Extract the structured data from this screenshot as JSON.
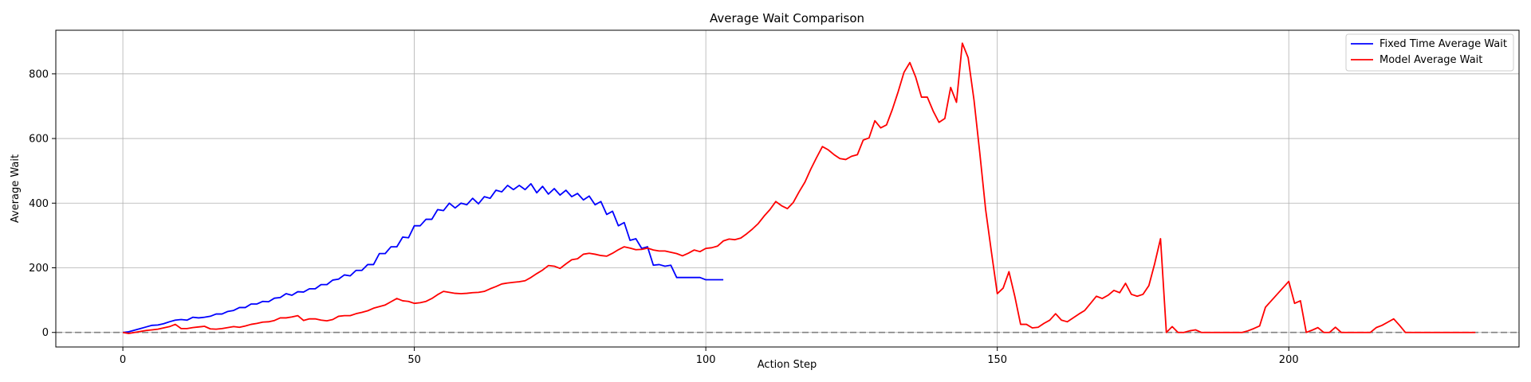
{
  "chart_data": {
    "type": "line",
    "title": "Average Wait Comparison",
    "xlabel": "Action Step",
    "ylabel": "Average Wait",
    "xlim": [
      -11.5,
      239.5
    ],
    "ylim": [
      -45,
      935
    ],
    "xticks": [
      0,
      50,
      100,
      150,
      200
    ],
    "yticks": [
      0,
      200,
      400,
      600,
      800
    ],
    "grid": true,
    "legend_position": "top-right",
    "reference_line": {
      "y": 0,
      "style": "dashed",
      "color": "#808080"
    },
    "series": [
      {
        "name": "Fixed Time Average Wait",
        "color": "#0000ff",
        "values": [
          0,
          2,
          7,
          12,
          17,
          22,
          23,
          27,
          33,
          38,
          40,
          38,
          47,
          45,
          47,
          50,
          57,
          57,
          65,
          68,
          77,
          77,
          88,
          88,
          96,
          95,
          106,
          108,
          120,
          115,
          126,
          125,
          135,
          135,
          148,
          148,
          162,
          165,
          178,
          175,
          192,
          192,
          210,
          210,
          244,
          244,
          265,
          265,
          295,
          293,
          330,
          330,
          350,
          350,
          380,
          377,
          400,
          385,
          400,
          395,
          415,
          398,
          420,
          415,
          440,
          435,
          455,
          442,
          455,
          442,
          460,
          432,
          452,
          428,
          445,
          425,
          440,
          420,
          430,
          410,
          422,
          395,
          405,
          365,
          375,
          330,
          340,
          285,
          290,
          260,
          265,
          208,
          210,
          205,
          208,
          170,
          170,
          170,
          170,
          170,
          163,
          163,
          163,
          163
        ]
      },
      {
        "name": "Model Average Wait",
        "color": "#ff0000",
        "values": [
          0,
          -3,
          0,
          3,
          6,
          8,
          10,
          14,
          18,
          25,
          12,
          12,
          15,
          17,
          19,
          11,
          10,
          12,
          15,
          18,
          16,
          20,
          25,
          28,
          32,
          33,
          37,
          45,
          45,
          48,
          52,
          37,
          42,
          42,
          38,
          36,
          40,
          50,
          52,
          52,
          58,
          62,
          67,
          75,
          80,
          85,
          95,
          105,
          98,
          96,
          90,
          92,
          96,
          105,
          117,
          127,
          124,
          121,
          120,
          121,
          123,
          124,
          127,
          135,
          142,
          150,
          153,
          155,
          157,
          160,
          170,
          182,
          193,
          207,
          205,
          198,
          212,
          225,
          228,
          242,
          245,
          242,
          238,
          236,
          245,
          256,
          265,
          261,
          256,
          257,
          261,
          255,
          252,
          252,
          248,
          244,
          237,
          245,
          255,
          250,
          260,
          262,
          267,
          283,
          289,
          287,
          292,
          305,
          320,
          337,
          360,
          380,
          405,
          392,
          383,
          402,
          435,
          465,
          505,
          541,
          575,
          565,
          550,
          538,
          535,
          545,
          550,
          595,
          602,
          655,
          633,
          642,
          690,
          745,
          805,
          835,
          790,
          728,
          728,
          685,
          650,
          662,
          758,
          712,
          895,
          850,
          720,
          555,
          380,
          248,
          120,
          137,
          188,
          112,
          25,
          25,
          14,
          16,
          28,
          38,
          58,
          38,
          33,
          45,
          57,
          68,
          90,
          112,
          105,
          115,
          130,
          123,
          152,
          118,
          112,
          118,
          145,
          213,
          290,
          0,
          18,
          0,
          0,
          5,
          8,
          0,
          0,
          0,
          0,
          0,
          0,
          0,
          0,
          5,
          12,
          20,
          78,
          98,
          118,
          138,
          158,
          90,
          98,
          0,
          7,
          15,
          0,
          0,
          16,
          0,
          0,
          0,
          0,
          0,
          0,
          15,
          22,
          32,
          42,
          22,
          0,
          0,
          0,
          0,
          0,
          0,
          0,
          0,
          0,
          0,
          0,
          0,
          0
        ]
      }
    ]
  }
}
